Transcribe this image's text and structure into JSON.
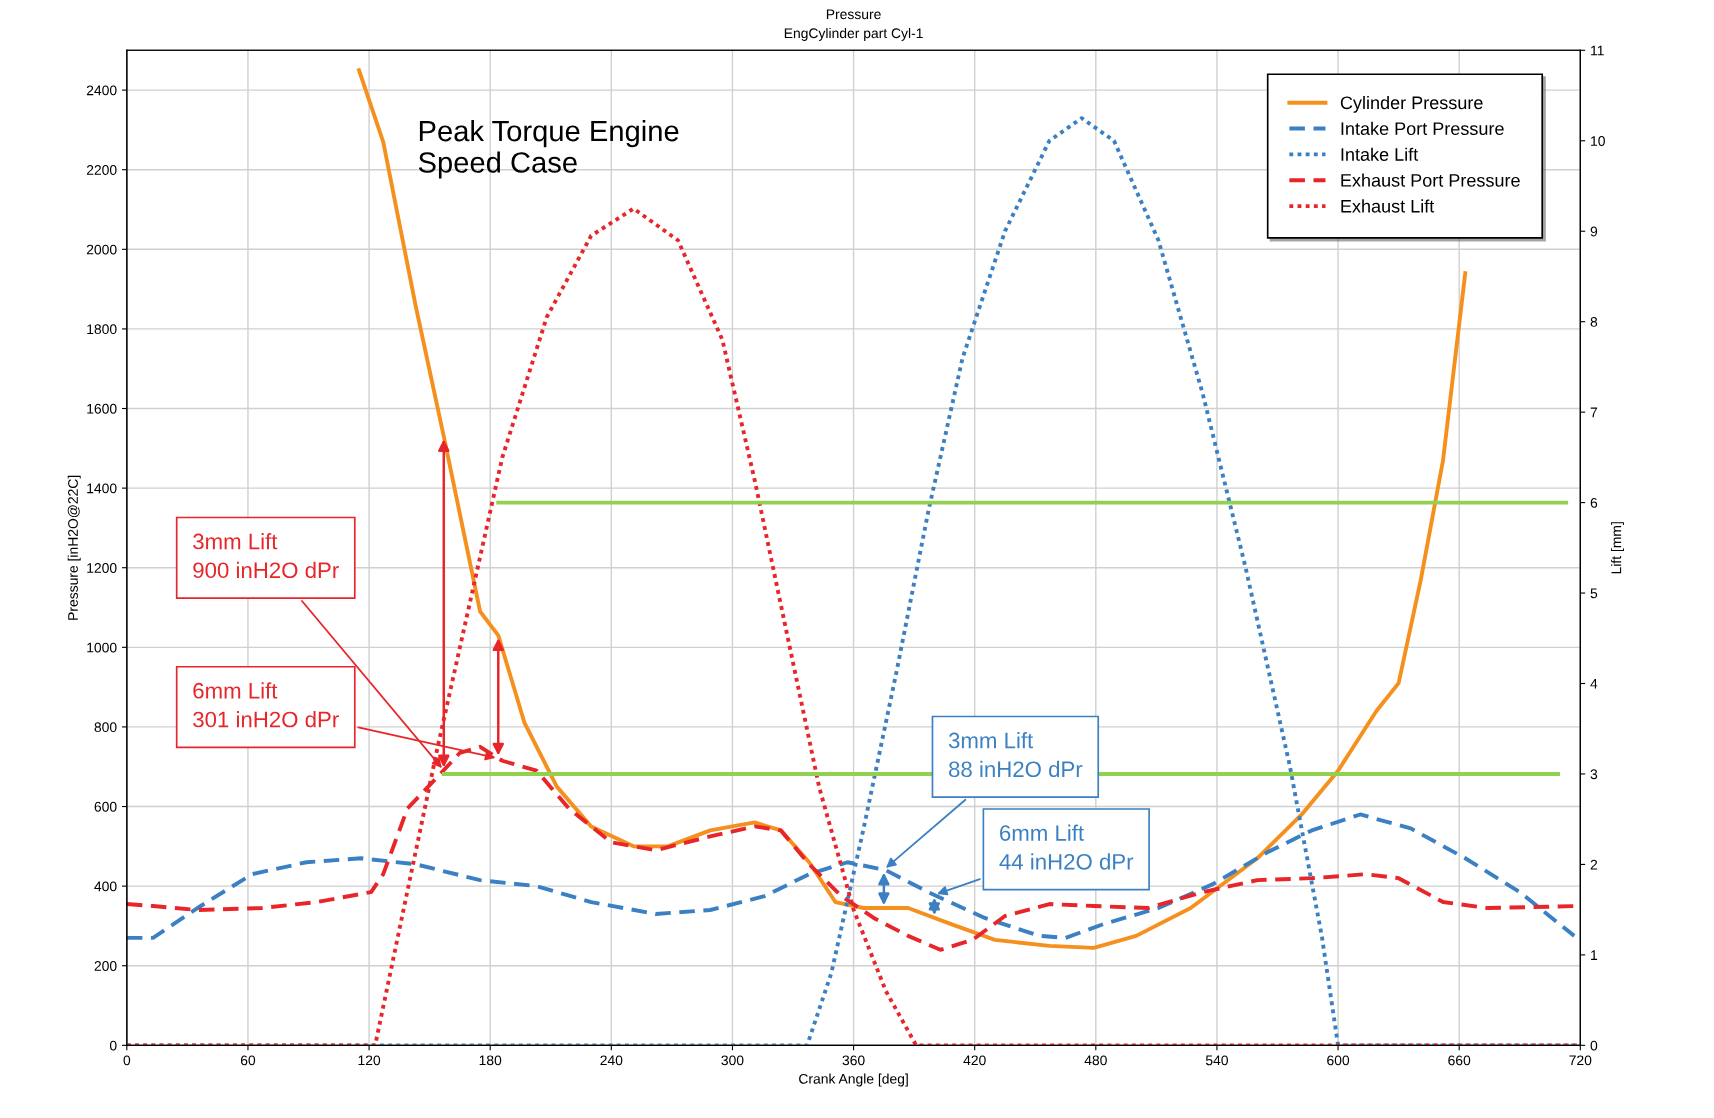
{
  "chart_data": {
    "type": "line",
    "title": "Pressure",
    "subtitle": "EngCylinder part Cyl-1",
    "xlabel": "Crank Angle [deg]",
    "ylabel": "Pressure [inH2O@22C]",
    "y2label": "Lift [mm]",
    "xlim": [
      0,
      720
    ],
    "xticks": [
      0,
      60,
      120,
      180,
      240,
      300,
      360,
      420,
      480,
      540,
      600,
      660,
      720
    ],
    "ylim": [
      0,
      2500
    ],
    "yticks": [
      0,
      200,
      400,
      600,
      800,
      1000,
      1200,
      1400,
      1600,
      1800,
      2000,
      2200,
      2400
    ],
    "y2lim": [
      0,
      11
    ],
    "y2ticks": [
      0,
      1,
      2,
      3,
      4,
      5,
      6,
      7,
      8,
      9,
      10,
      11
    ],
    "grid": true,
    "legend": "top right",
    "series": [
      {
        "name": "Cylinder Pressure",
        "color": "#f5901e",
        "line_style": "solid",
        "x": [
          115,
          127,
          143,
          157,
          175,
          184,
          197,
          213,
          230,
          251,
          268,
          289,
          311,
          324,
          338,
          351,
          365,
          387,
          408,
          430,
          457,
          479,
          500,
          527,
          560,
          582,
          600,
          619,
          630,
          641,
          652,
          663
        ],
        "values": [
          2450,
          2270,
          1860,
          1530,
          1090,
          1030,
          810,
          650,
          550,
          500,
          500,
          540,
          560,
          540,
          460,
          360,
          345,
          345,
          305,
          265,
          250,
          245,
          275,
          345,
          470,
          580,
          690,
          840,
          910,
          1170,
          1470,
          1940
        ]
      },
      {
        "name": "Intake Port Pressure",
        "color": "#3b80c2",
        "line_style": "dashed",
        "x": [
          0,
          13,
          35,
          62,
          89,
          116,
          143,
          175,
          203,
          230,
          262,
          289,
          316,
          338,
          357,
          376,
          397,
          425,
          452,
          465,
          484,
          511,
          538,
          565,
          587,
          611,
          636,
          663,
          690,
          717
        ],
        "values": [
          270,
          270,
          345,
          430,
          460,
          470,
          455,
          415,
          400,
          360,
          330,
          340,
          375,
          430,
          460,
          440,
          385,
          320,
          275,
          270,
          305,
          345,
          405,
          485,
          540,
          580,
          545,
          470,
          385,
          275
        ]
      },
      {
        "name": "Intake Lift",
        "color": "#3b80c2",
        "line_style": "dotted",
        "axis": "y2",
        "x": [
          0,
          337,
          349,
          365,
          381,
          397,
          414,
          435,
          457,
          473,
          489,
          511,
          533,
          554,
          576,
          592,
          600,
          720
        ],
        "values": [
          0,
          0,
          0.8,
          2.4,
          4.1,
          5.9,
          7.6,
          9.0,
          10.0,
          10.25,
          10.0,
          8.9,
          7.2,
          5.3,
          3.1,
          1.2,
          0,
          0
        ]
      },
      {
        "name": "Exhaust Port Pressure",
        "color": "#e8262a",
        "line_style": "dashed",
        "x": [
          0,
          13,
          35,
          67,
          94,
          121,
          127,
          139,
          154,
          165,
          175,
          186,
          203,
          219,
          240,
          262,
          289,
          311,
          324,
          338,
          354,
          370,
          387,
          403,
          419,
          435,
          457,
          479,
          506,
          533,
          560,
          587,
          614,
          630,
          652,
          674,
          720
        ],
        "values": [
          355,
          350,
          340,
          345,
          360,
          385,
          430,
          595,
          675,
          735,
          750,
          715,
          690,
          595,
          510,
          490,
          525,
          550,
          540,
          455,
          375,
          320,
          275,
          240,
          265,
          325,
          355,
          350,
          345,
          385,
          415,
          420,
          430,
          420,
          360,
          345,
          350
        ]
      },
      {
        "name": "Exhaust Lift",
        "color": "#e8262a",
        "line_style": "dotted",
        "axis": "y2",
        "x": [
          0,
          123,
          138,
          154,
          170,
          186,
          208,
          230,
          251,
          273,
          295,
          311,
          327,
          343,
          360,
          376,
          391,
          720
        ],
        "values": [
          0,
          0,
          1.6,
          3.3,
          4.9,
          6.5,
          8.05,
          8.95,
          9.25,
          8.9,
          7.8,
          6.25,
          4.55,
          2.85,
          1.5,
          0.6,
          0,
          0
        ]
      },
      {
        "color": "#92d050",
        "line_style": "solid",
        "axis": "y2",
        "x": [
          184,
          713
        ],
        "values": [
          6,
          6
        ]
      },
      {
        "color": "#92d050",
        "line_style": "solid",
        "axis": "y2",
        "x": [
          157,
          709
        ],
        "values": [
          3,
          3
        ]
      }
    ],
    "annotations": [
      "Peak Torque Engine\nSpeed Case",
      {
        "text": "3mm Lift\n900 inH2O dPr",
        "x": 157,
        "y": 691
      },
      {
        "text": "6mm Lift\n301 inH2O dPr",
        "x": 184,
        "y": 721
      },
      {
        "text": "3mm Lift\n88 inH2O dPr",
        "x": 375,
        "y": 441
      },
      {
        "text": "6mm Lift\n44 inH2O dPr",
        "x": 400,
        "y": 378
      }
    ]
  }
}
